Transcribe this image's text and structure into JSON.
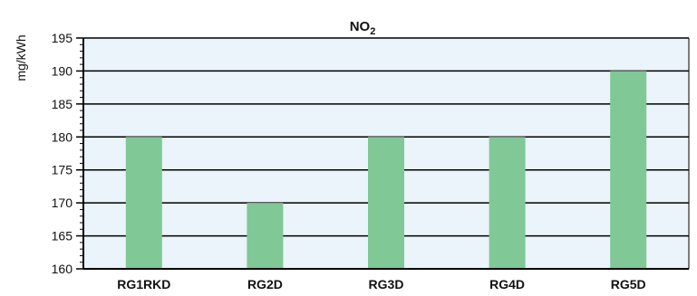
{
  "chart_data": {
    "type": "bar",
    "title": "NO",
    "title_subscript": "2",
    "ylabel": "mg/kWh",
    "xlabel": "",
    "categories": [
      "RG1RKD",
      "RG2D",
      "RG3D",
      "RG4D",
      "RG5D"
    ],
    "values": [
      180,
      170,
      180,
      180,
      190
    ],
    "ylim": [
      160,
      195
    ],
    "yticks": [
      160,
      165,
      170,
      175,
      180,
      185,
      190,
      195
    ],
    "grid": true,
    "legend": "none"
  },
  "colors": {
    "bar": "#80c896",
    "plot_background": "#eaf4fa",
    "gridline": "#000000",
    "axis": "#000000"
  }
}
